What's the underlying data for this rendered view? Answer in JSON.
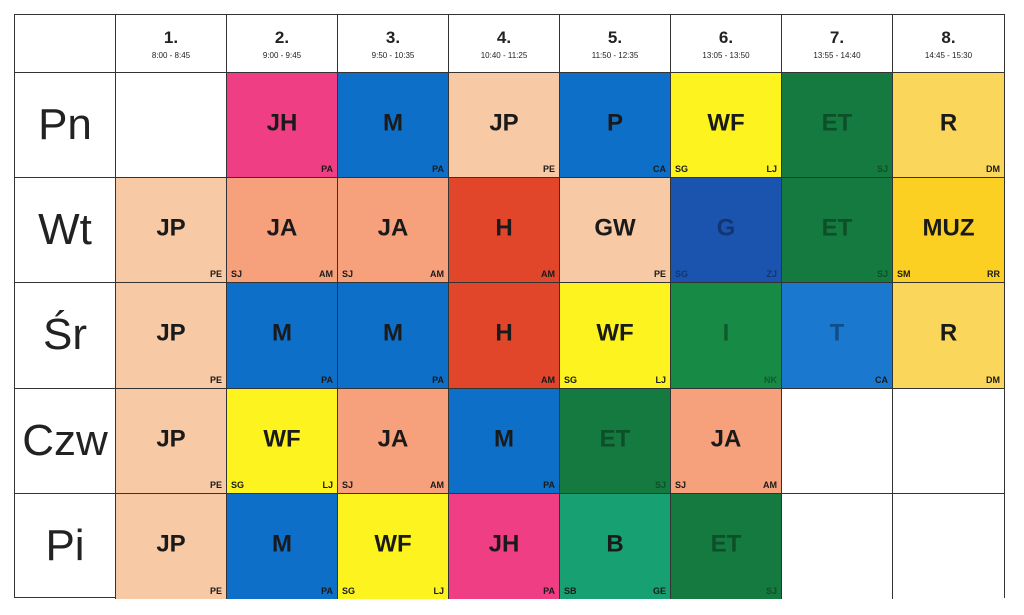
{
  "colors": {
    "JP": "#f7c9a4",
    "JH": "#ef3e84",
    "M": "#0d6fc7",
    "P": "#0d6fc7",
    "WF": "#fcf31f",
    "ET": "#147a3f",
    "R": "#fad65a",
    "JA": "#f7a07c",
    "H": "#e2462a",
    "GW": "#f7c9a4",
    "G": "#1b54ae",
    "MUZ": "#fcd022",
    "I": "#178a45",
    "T": "#1a78cf",
    "B": "#17a071",
    "empty": "#ffffff"
  },
  "periods": [
    {
      "num": "1.",
      "time": "8:00 - 8:45"
    },
    {
      "num": "2.",
      "time": "9:00 - 9:45"
    },
    {
      "num": "3.",
      "time": "9:50 - 10:35"
    },
    {
      "num": "4.",
      "time": "10:40 - 11:25"
    },
    {
      "num": "5.",
      "time": "11:50 - 12:35"
    },
    {
      "num": "6.",
      "time": "13:05 - 13:50"
    },
    {
      "num": "7.",
      "time": "13:55 - 14:40"
    },
    {
      "num": "8.",
      "time": "14:45 - 15:30"
    }
  ],
  "days": [
    {
      "name": "Pn",
      "lessons": [
        {
          "subject": "",
          "tl": "",
          "tr": ""
        },
        {
          "subject": "JH",
          "tl": "",
          "tr": "PA"
        },
        {
          "subject": "M",
          "tl": "",
          "tr": "PA"
        },
        {
          "subject": "JP",
          "tl": "",
          "tr": "PE"
        },
        {
          "subject": "P",
          "tl": "",
          "tr": "CA"
        },
        {
          "subject": "WF",
          "tl": "SG",
          "tr": "LJ"
        },
        {
          "subject": "ET",
          "tl": "",
          "tr": "SJ"
        },
        {
          "subject": "R",
          "tl": "",
          "tr": "DM"
        }
      ]
    },
    {
      "name": "Wt",
      "lessons": [
        {
          "subject": "JP",
          "tl": "",
          "tr": "PE"
        },
        {
          "subject": "JA",
          "tl": "SJ",
          "tr": "AM"
        },
        {
          "subject": "JA",
          "tl": "SJ",
          "tr": "AM"
        },
        {
          "subject": "H",
          "tl": "",
          "tr": "AM"
        },
        {
          "subject": "GW",
          "tl": "",
          "tr": "PE"
        },
        {
          "subject": "G",
          "tl": "SG",
          "tr": "ZJ"
        },
        {
          "subject": "ET",
          "tl": "",
          "tr": "SJ"
        },
        {
          "subject": "MUZ",
          "tl": "SM",
          "tr": "RR"
        }
      ]
    },
    {
      "name": "Śr",
      "lessons": [
        {
          "subject": "JP",
          "tl": "",
          "tr": "PE"
        },
        {
          "subject": "M",
          "tl": "",
          "tr": "PA"
        },
        {
          "subject": "M",
          "tl": "",
          "tr": "PA"
        },
        {
          "subject": "H",
          "tl": "",
          "tr": "AM"
        },
        {
          "subject": "WF",
          "tl": "SG",
          "tr": "LJ"
        },
        {
          "subject": "I",
          "tl": "",
          "tr": "NK"
        },
        {
          "subject": "T",
          "tl": "",
          "tr": "CA"
        },
        {
          "subject": "R",
          "tl": "",
          "tr": "DM"
        }
      ]
    },
    {
      "name": "Czw",
      "lessons": [
        {
          "subject": "JP",
          "tl": "",
          "tr": "PE"
        },
        {
          "subject": "WF",
          "tl": "SG",
          "tr": "LJ"
        },
        {
          "subject": "JA",
          "tl": "SJ",
          "tr": "AM"
        },
        {
          "subject": "M",
          "tl": "",
          "tr": "PA"
        },
        {
          "subject": "ET",
          "tl": "",
          "tr": "SJ"
        },
        {
          "subject": "JA",
          "tl": "SJ",
          "tr": "AM"
        },
        {
          "subject": "",
          "tl": "",
          "tr": ""
        },
        {
          "subject": "",
          "tl": "",
          "tr": ""
        }
      ]
    },
    {
      "name": "Pi",
      "lessons": [
        {
          "subject": "JP",
          "tl": "",
          "tr": "PE"
        },
        {
          "subject": "M",
          "tl": "",
          "tr": "PA"
        },
        {
          "subject": "WF",
          "tl": "SG",
          "tr": "LJ"
        },
        {
          "subject": "JH",
          "tl": "",
          "tr": "PA"
        },
        {
          "subject": "B",
          "tl": "SB",
          "tr": "GE"
        },
        {
          "subject": "ET",
          "tl": "",
          "tr": "SJ"
        },
        {
          "subject": "",
          "tl": "",
          "tr": ""
        },
        {
          "subject": "",
          "tl": "",
          "tr": ""
        }
      ]
    }
  ]
}
